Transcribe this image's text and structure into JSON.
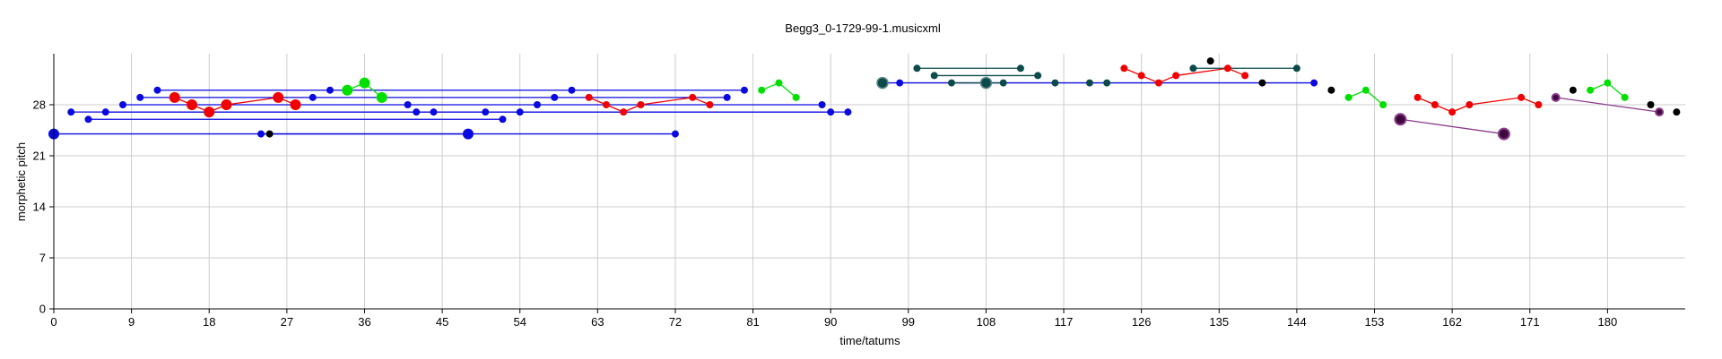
{
  "chart_data": {
    "type": "scatter",
    "title": "Begg3_0-1729-99-1.musicxml",
    "xlabel": "time/tatums",
    "ylabel": "morphetic pitch",
    "xlim": [
      0,
      189
    ],
    "ylim": [
      0,
      35
    ],
    "xticks": [
      0,
      9,
      18,
      27,
      36,
      45,
      54,
      63,
      72,
      81,
      90,
      99,
      108,
      117,
      126,
      135,
      144,
      153,
      162,
      171,
      180
    ],
    "yticks": [
      0,
      7,
      14,
      21,
      28
    ],
    "grid": true,
    "colors": {
      "blue": "#0a0ae0",
      "red": "#f00000",
      "green": "#00e000",
      "teal": "#0d4a4a",
      "black": "#000000",
      "purple": "#8a3a8a",
      "purple_fill": "#3c0a3c"
    },
    "segments": [
      {
        "color": "blue",
        "points": [
          [
            0,
            24
          ],
          [
            72,
            24
          ]
        ]
      },
      {
        "color": "blue",
        "points": [
          [
            2,
            27
          ],
          [
            92,
            27
          ]
        ]
      },
      {
        "color": "blue",
        "points": [
          [
            4,
            26
          ],
          [
            52,
            26
          ]
        ]
      },
      {
        "color": "blue",
        "points": [
          [
            6,
            27
          ],
          [
            90,
            27
          ]
        ]
      },
      {
        "color": "blue",
        "points": [
          [
            8,
            28
          ],
          [
            89,
            28
          ]
        ]
      },
      {
        "color": "blue",
        "points": [
          [
            10,
            29
          ],
          [
            78,
            29
          ]
        ]
      },
      {
        "color": "blue",
        "points": [
          [
            12,
            30
          ],
          [
            80,
            30
          ]
        ]
      },
      {
        "color": "blue",
        "points": [
          [
            24,
            24
          ],
          [
            48,
            24
          ]
        ]
      },
      {
        "color": "blue",
        "points": [
          [
            96,
            31
          ],
          [
            146,
            31
          ]
        ]
      },
      {
        "color": "teal",
        "points": [
          [
            100,
            33
          ],
          [
            112,
            33
          ]
        ]
      },
      {
        "color": "teal",
        "points": [
          [
            102,
            32
          ],
          [
            114,
            32
          ]
        ]
      },
      {
        "color": "teal",
        "points": [
          [
            104,
            31
          ],
          [
            110,
            31
          ]
        ]
      },
      {
        "color": "teal",
        "points": [
          [
            132,
            33
          ],
          [
            144,
            33
          ]
        ]
      },
      {
        "color": "red",
        "points": [
          [
            14,
            29
          ],
          [
            16,
            28
          ],
          [
            18,
            27
          ],
          [
            20,
            28
          ],
          [
            26,
            29
          ],
          [
            28,
            28
          ]
        ]
      },
      {
        "color": "red",
        "points": [
          [
            62,
            29
          ],
          [
            64,
            28
          ],
          [
            66,
            27
          ],
          [
            68,
            28
          ],
          [
            74,
            29
          ],
          [
            76,
            28
          ]
        ]
      },
      {
        "color": "red",
        "points": [
          [
            124,
            33
          ],
          [
            126,
            32
          ],
          [
            128,
            31
          ],
          [
            130,
            32
          ],
          [
            136,
            33
          ],
          [
            138,
            32
          ]
        ]
      },
      {
        "color": "red",
        "points": [
          [
            158,
            29
          ],
          [
            160,
            28
          ],
          [
            162,
            27
          ],
          [
            164,
            28
          ],
          [
            170,
            29
          ],
          [
            172,
            28
          ]
        ]
      },
      {
        "color": "green",
        "points": [
          [
            34,
            30
          ],
          [
            36,
            31
          ],
          [
            38,
            29
          ]
        ]
      },
      {
        "color": "green",
        "points": [
          [
            82,
            30
          ],
          [
            84,
            31
          ],
          [
            86,
            29
          ]
        ]
      },
      {
        "color": "green",
        "points": [
          [
            150,
            29
          ],
          [
            152,
            30
          ],
          [
            154,
            28
          ]
        ]
      },
      {
        "color": "green",
        "points": [
          [
            178,
            30
          ],
          [
            180,
            31
          ],
          [
            182,
            29
          ]
        ]
      },
      {
        "color": "purple",
        "points": [
          [
            156,
            26
          ],
          [
            168,
            24
          ]
        ]
      },
      {
        "color": "purple",
        "points": [
          [
            174,
            29
          ],
          [
            186,
            27
          ]
        ]
      }
    ],
    "points": [
      {
        "x": 0,
        "y": 24,
        "color": "blue",
        "size": "large"
      },
      {
        "x": 2,
        "y": 27,
        "color": "blue",
        "size": "small"
      },
      {
        "x": 4,
        "y": 26,
        "color": "blue",
        "size": "small"
      },
      {
        "x": 6,
        "y": 27,
        "color": "blue",
        "size": "small"
      },
      {
        "x": 8,
        "y": 28,
        "color": "blue",
        "size": "small"
      },
      {
        "x": 10,
        "y": 29,
        "color": "blue",
        "size": "small"
      },
      {
        "x": 12,
        "y": 30,
        "color": "blue",
        "size": "small"
      },
      {
        "x": 14,
        "y": 29,
        "color": "red",
        "size": "large"
      },
      {
        "x": 16,
        "y": 28,
        "color": "red",
        "size": "large"
      },
      {
        "x": 18,
        "y": 27,
        "color": "red",
        "size": "large"
      },
      {
        "x": 20,
        "y": 28,
        "color": "red",
        "size": "large"
      },
      {
        "x": 24,
        "y": 24,
        "color": "blue",
        "size": "small"
      },
      {
        "x": 25,
        "y": 24,
        "color": "black",
        "size": "small"
      },
      {
        "x": 26,
        "y": 29,
        "color": "red",
        "size": "large"
      },
      {
        "x": 28,
        "y": 28,
        "color": "red",
        "size": "large"
      },
      {
        "x": 30,
        "y": 29,
        "color": "blue",
        "size": "small"
      },
      {
        "x": 32,
        "y": 30,
        "color": "blue",
        "size": "small"
      },
      {
        "x": 34,
        "y": 30,
        "color": "green",
        "size": "large"
      },
      {
        "x": 36,
        "y": 31,
        "color": "green",
        "size": "large"
      },
      {
        "x": 38,
        "y": 29,
        "color": "green",
        "size": "large"
      },
      {
        "x": 41,
        "y": 28,
        "color": "blue",
        "size": "small"
      },
      {
        "x": 42,
        "y": 27,
        "color": "blue",
        "size": "small"
      },
      {
        "x": 44,
        "y": 27,
        "color": "blue",
        "size": "small"
      },
      {
        "x": 48,
        "y": 24,
        "color": "blue",
        "size": "large"
      },
      {
        "x": 50,
        "y": 27,
        "color": "blue",
        "size": "small"
      },
      {
        "x": 52,
        "y": 26,
        "color": "blue",
        "size": "small"
      },
      {
        "x": 54,
        "y": 27,
        "color": "blue",
        "size": "small"
      },
      {
        "x": 56,
        "y": 28,
        "color": "blue",
        "size": "small"
      },
      {
        "x": 58,
        "y": 29,
        "color": "blue",
        "size": "small"
      },
      {
        "x": 60,
        "y": 30,
        "color": "blue",
        "size": "small"
      },
      {
        "x": 62,
        "y": 29,
        "color": "red",
        "size": "small"
      },
      {
        "x": 64,
        "y": 28,
        "color": "red",
        "size": "small"
      },
      {
        "x": 66,
        "y": 27,
        "color": "red",
        "size": "small"
      },
      {
        "x": 68,
        "y": 28,
        "color": "red",
        "size": "small"
      },
      {
        "x": 72,
        "y": 24,
        "color": "blue",
        "size": "small"
      },
      {
        "x": 74,
        "y": 29,
        "color": "red",
        "size": "small"
      },
      {
        "x": 76,
        "y": 28,
        "color": "red",
        "size": "small"
      },
      {
        "x": 78,
        "y": 29,
        "color": "blue",
        "size": "small"
      },
      {
        "x": 80,
        "y": 30,
        "color": "blue",
        "size": "small"
      },
      {
        "x": 82,
        "y": 30,
        "color": "green",
        "size": "small"
      },
      {
        "x": 84,
        "y": 31,
        "color": "green",
        "size": "small"
      },
      {
        "x": 86,
        "y": 29,
        "color": "green",
        "size": "small"
      },
      {
        "x": 89,
        "y": 28,
        "color": "blue",
        "size": "small"
      },
      {
        "x": 90,
        "y": 27,
        "color": "blue",
        "size": "small"
      },
      {
        "x": 92,
        "y": 27,
        "color": "blue",
        "size": "small"
      },
      {
        "x": 96,
        "y": 31,
        "color": "teal",
        "size": "large"
      },
      {
        "x": 98,
        "y": 31,
        "color": "blue",
        "size": "small"
      },
      {
        "x": 100,
        "y": 33,
        "color": "teal",
        "size": "small"
      },
      {
        "x": 102,
        "y": 32,
        "color": "teal",
        "size": "small"
      },
      {
        "x": 104,
        "y": 31,
        "color": "teal",
        "size": "small"
      },
      {
        "x": 108,
        "y": 31,
        "color": "teal",
        "size": "large"
      },
      {
        "x": 110,
        "y": 31,
        "color": "teal",
        "size": "small"
      },
      {
        "x": 112,
        "y": 33,
        "color": "teal",
        "size": "small"
      },
      {
        "x": 114,
        "y": 32,
        "color": "teal",
        "size": "small"
      },
      {
        "x": 116,
        "y": 31,
        "color": "teal",
        "size": "small"
      },
      {
        "x": 120,
        "y": 31,
        "color": "teal",
        "size": "small"
      },
      {
        "x": 122,
        "y": 31,
        "color": "teal",
        "size": "small"
      },
      {
        "x": 124,
        "y": 33,
        "color": "red",
        "size": "small"
      },
      {
        "x": 126,
        "y": 32,
        "color": "red",
        "size": "small"
      },
      {
        "x": 128,
        "y": 31,
        "color": "red",
        "size": "small"
      },
      {
        "x": 130,
        "y": 32,
        "color": "red",
        "size": "small"
      },
      {
        "x": 132,
        "y": 33,
        "color": "teal",
        "size": "small"
      },
      {
        "x": 134,
        "y": 34,
        "color": "black",
        "size": "small"
      },
      {
        "x": 136,
        "y": 33,
        "color": "red",
        "size": "small"
      },
      {
        "x": 138,
        "y": 32,
        "color": "red",
        "size": "small"
      },
      {
        "x": 140,
        "y": 31,
        "color": "black",
        "size": "small"
      },
      {
        "x": 144,
        "y": 33,
        "color": "teal",
        "size": "small"
      },
      {
        "x": 146,
        "y": 31,
        "color": "blue",
        "size": "small"
      },
      {
        "x": 148,
        "y": 30,
        "color": "black",
        "size": "small"
      },
      {
        "x": 150,
        "y": 29,
        "color": "green",
        "size": "small"
      },
      {
        "x": 152,
        "y": 30,
        "color": "green",
        "size": "small"
      },
      {
        "x": 154,
        "y": 28,
        "color": "green",
        "size": "small"
      },
      {
        "x": 156,
        "y": 26,
        "color": "purple",
        "size": "large"
      },
      {
        "x": 158,
        "y": 29,
        "color": "red",
        "size": "small"
      },
      {
        "x": 160,
        "y": 28,
        "color": "red",
        "size": "small"
      },
      {
        "x": 162,
        "y": 27,
        "color": "red",
        "size": "small"
      },
      {
        "x": 164,
        "y": 28,
        "color": "red",
        "size": "small"
      },
      {
        "x": 168,
        "y": 24,
        "color": "purple",
        "size": "large"
      },
      {
        "x": 170,
        "y": 29,
        "color": "red",
        "size": "small"
      },
      {
        "x": 172,
        "y": 28,
        "color": "red",
        "size": "small"
      },
      {
        "x": 174,
        "y": 29,
        "color": "purple",
        "size": "small"
      },
      {
        "x": 176,
        "y": 30,
        "color": "black",
        "size": "small"
      },
      {
        "x": 178,
        "y": 30,
        "color": "green",
        "size": "small"
      },
      {
        "x": 180,
        "y": 31,
        "color": "green",
        "size": "small"
      },
      {
        "x": 182,
        "y": 29,
        "color": "green",
        "size": "small"
      },
      {
        "x": 185,
        "y": 28,
        "color": "black",
        "size": "small"
      },
      {
        "x": 186,
        "y": 27,
        "color": "purple",
        "size": "small"
      },
      {
        "x": 188,
        "y": 27,
        "color": "black",
        "size": "small"
      }
    ]
  }
}
